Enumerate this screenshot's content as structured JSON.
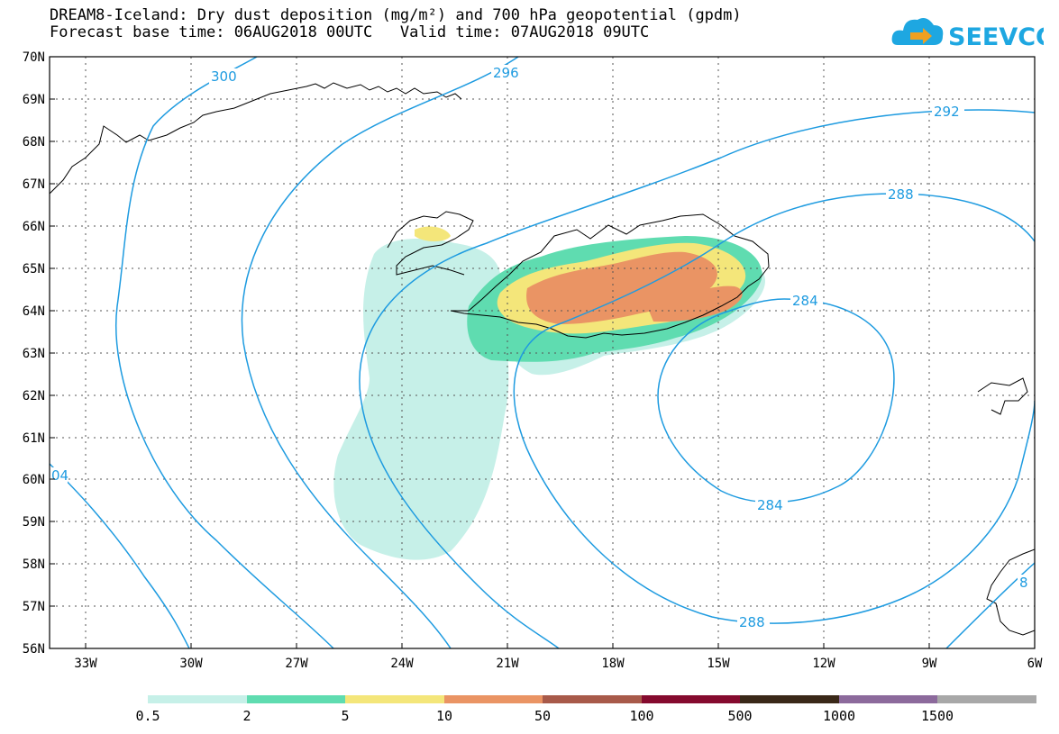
{
  "title": {
    "line1": "DREAM8-Iceland: Dry dust deposition (mg/m²) and 700 hPa geopotential (gpdm)",
    "line2": "Forecast base time: 06AUG2018 00UTC   Valid time: 07AUG2018 09UTC"
  },
  "logo": {
    "text": "SEEVCCC",
    "icon": "cloud-arrow-icon",
    "color": "#1ea7e1"
  },
  "axes": {
    "lat_labels": [
      "70N",
      "69N",
      "68N",
      "67N",
      "66N",
      "65N",
      "64N",
      "63N",
      "62N",
      "61N",
      "60N",
      "59N",
      "58N",
      "57N",
      "56N"
    ],
    "lon_labels": [
      "33W",
      "30W",
      "27W",
      "24W",
      "21W",
      "18W",
      "15W",
      "12W",
      "9W",
      "6W"
    ]
  },
  "contours": {
    "color": "#1e9be0",
    "labels": [
      "300",
      "296",
      "292",
      "288",
      "284",
      "284",
      "288",
      "04",
      "8"
    ]
  },
  "legend": {
    "labels": [
      "0.5",
      "2",
      "5",
      "10",
      "50",
      "100",
      "500",
      "1000",
      "1500"
    ],
    "colors": [
      "#c6f0e8",
      "#5fdcb0",
      "#f4e67a",
      "#ea9464",
      "#a85a4a",
      "#850a2e",
      "#3a2818",
      "#8c6a9c",
      "#a8a8a8"
    ]
  }
}
